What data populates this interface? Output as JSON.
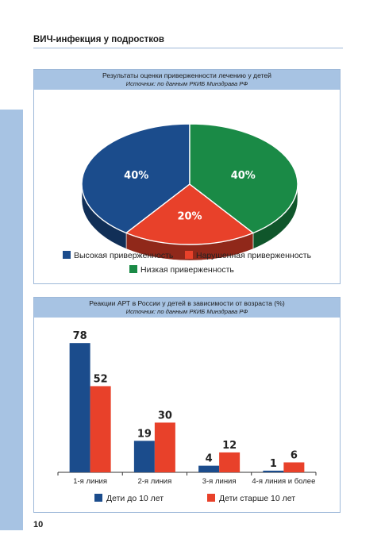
{
  "header": {
    "title": "ВИЧ-инфекция у подростков"
  },
  "page_number": "10",
  "colors": {
    "blue": "#1b4c8c",
    "red": "#e8412a",
    "green": "#1a8a46",
    "header_bg": "#a7c3e3"
  },
  "pie_panel": {
    "title": "Результаты оценки приверженности лечению у детей",
    "source": "Источник: по данным РКИБ Минздрава РФ"
  },
  "bar_panel": {
    "title": "Реакции АРТ в России у детей в зависимости от возраста (%)",
    "source": "Источник: по данным РКИБ Минздрава РФ"
  },
  "chart_data": [
    {
      "type": "pie",
      "style": "3d",
      "title": "Результаты оценки приверженности лечению у детей",
      "categories": [
        "Высокая приверженность",
        "Нарушенная приверженность",
        "Низкая приверженность"
      ],
      "values": [
        40,
        20,
        40
      ],
      "labels": [
        "40%",
        "20%",
        "40%"
      ],
      "colors": [
        "#1b4c8c",
        "#e8412a",
        "#1a8a46"
      ],
      "legend_position": "bottom"
    },
    {
      "type": "bar",
      "title": "Реакции АРТ в России у детей в зависимости от возраста (%)",
      "categories": [
        "1-я линия",
        "2-я линия",
        "3-я линия",
        "4-я линия и более"
      ],
      "series": [
        {
          "name": "Дети до 10 лет",
          "values": [
            78,
            19,
            4,
            1
          ],
          "color": "#1b4c8c"
        },
        {
          "name": "Дети старше 10 лет",
          "values": [
            52,
            30,
            12,
            6
          ],
          "color": "#e8412a"
        }
      ],
      "ylim": [
        0,
        80
      ],
      "grid": false,
      "legend_position": "bottom"
    }
  ]
}
